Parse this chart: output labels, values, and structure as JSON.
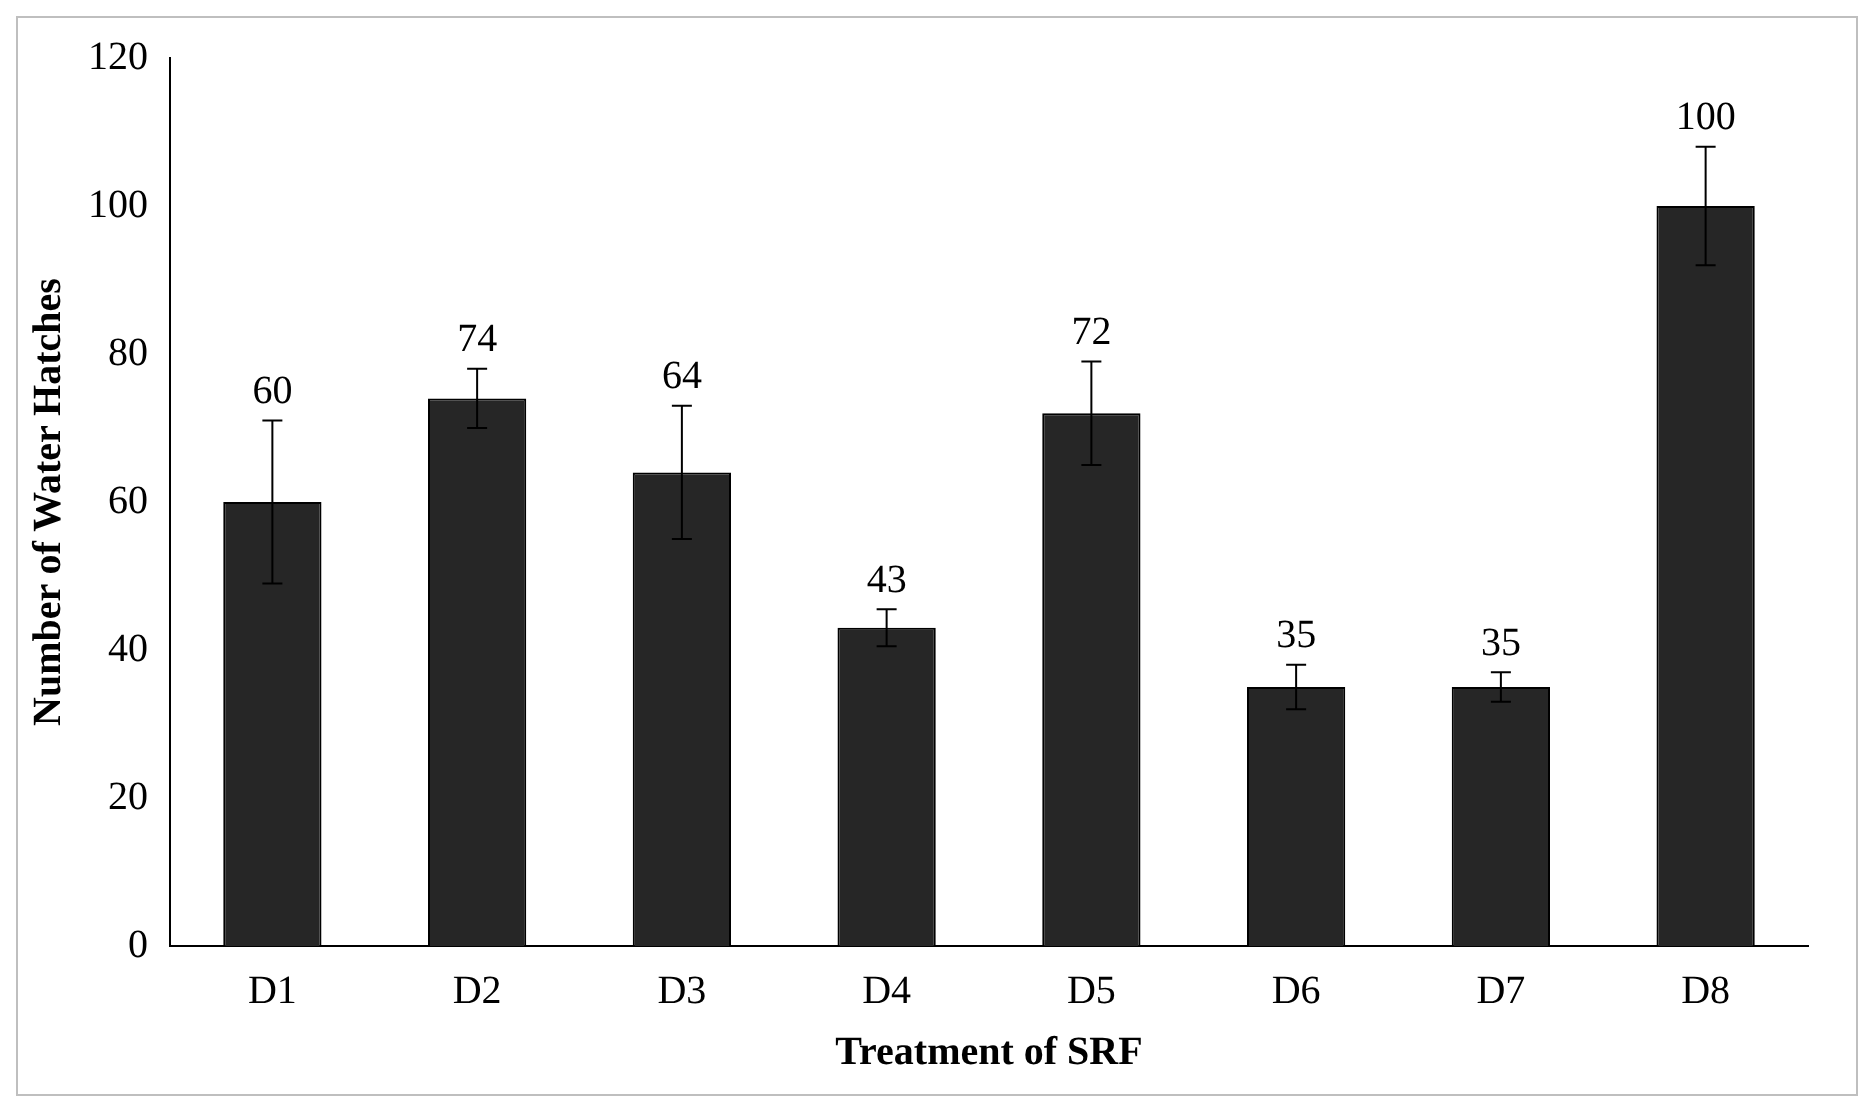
{
  "chart_data": {
    "type": "bar",
    "xlabel": "Treatment of SRF",
    "ylabel": "Number of Water Hatches",
    "categories": [
      "D1",
      "D2",
      "D3",
      "D4",
      "D5",
      "D6",
      "D7",
      "D8"
    ],
    "values": [
      60,
      74,
      64,
      43,
      72,
      35,
      35,
      100
    ],
    "errors": [
      11,
      4,
      9,
      2.5,
      7,
      3,
      2,
      8
    ],
    "color": "#262626",
    "ylim": [
      0,
      120
    ],
    "yticks": [
      0,
      20,
      40,
      60,
      80,
      100,
      120
    ],
    "grid": false,
    "data_labels": true
  }
}
